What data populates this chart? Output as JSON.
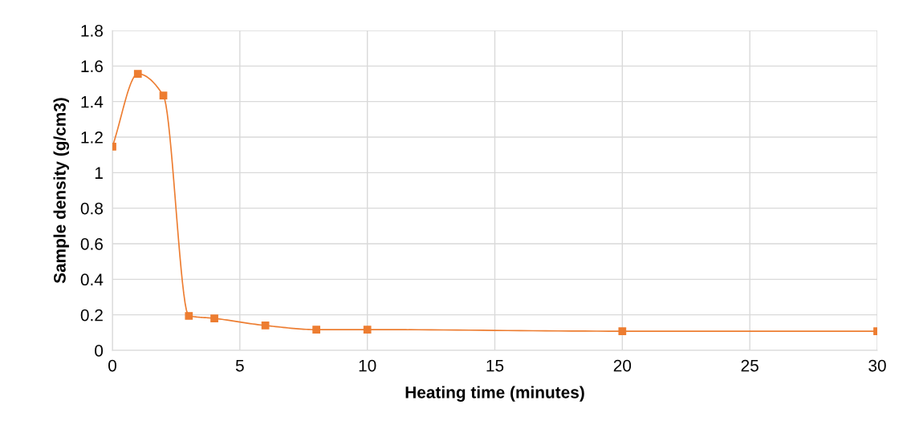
{
  "chart_data": {
    "type": "line",
    "xlabel": "Heating time (minutes)",
    "ylabel": "Sample density (g/cm3)",
    "x": [
      0,
      1,
      2,
      3,
      4,
      6,
      8,
      10,
      20,
      30
    ],
    "series": [
      {
        "color": "#ed7d31",
        "values": [
          1.146,
          1.556,
          1.434,
          0.194,
          0.18,
          0.14,
          0.117,
          0.117,
          0.108,
          0.108
        ]
      }
    ],
    "xlim": [
      0,
      30
    ],
    "xticks": [
      0,
      5,
      10,
      15,
      20,
      25,
      30
    ],
    "ylim": [
      0,
      1.8
    ],
    "yticks": [
      0,
      {
        "value": 0.2,
        "label": "0.2"
      },
      {
        "value": 0.4,
        "label": "0.4"
      },
      {
        "value": 0.6,
        "label": "0.6"
      },
      {
        "value": 0.8,
        "label": "0.8"
      },
      1,
      {
        "value": 1.2,
        "label": "1.2"
      },
      {
        "value": 1.4,
        "label": "1.4"
      },
      {
        "value": 1.6,
        "label": "1.6"
      },
      {
        "value": 1.8,
        "label": "1.8"
      }
    ],
    "grid": true,
    "marker": "square",
    "line_style": "solid",
    "legend": false
  }
}
